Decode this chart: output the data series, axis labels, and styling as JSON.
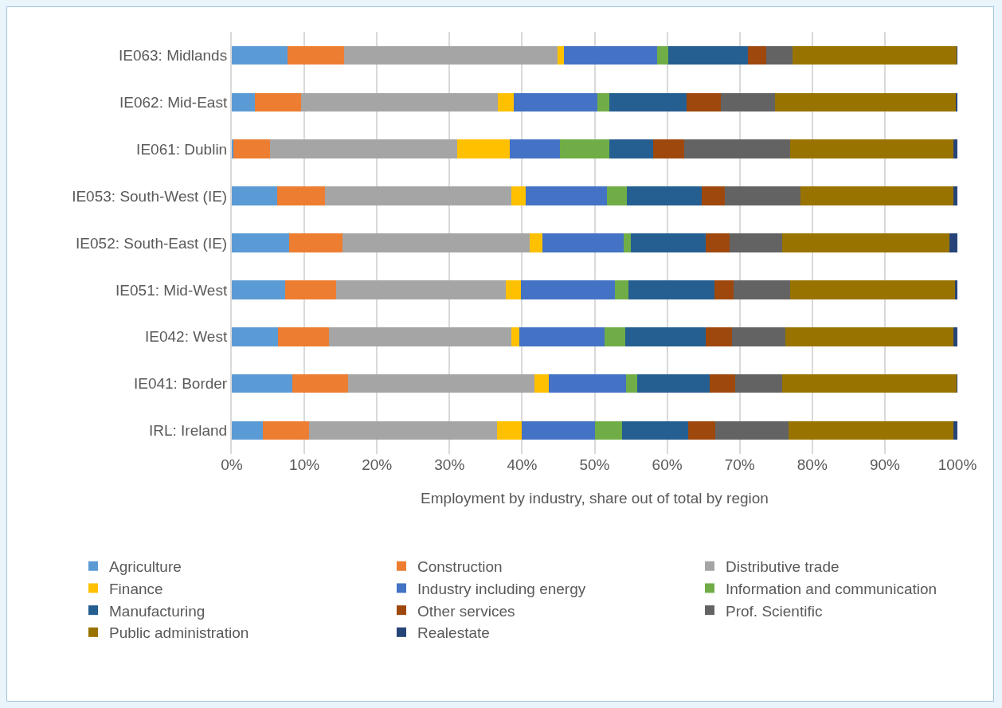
{
  "chart_data": {
    "type": "bar",
    "orientation": "horizontal",
    "stacked": true,
    "xlabel": "Employment by industry, share out of total by region",
    "categories": [
      "IE063: Midlands",
      "IE062: Mid-East",
      "IE061: Dublin",
      "IE053: South-West (IE)",
      "IE052: South-East (IE)",
      "IE051: Mid-West",
      "IE042: West",
      "IE041: Border",
      "IRL: Ireland"
    ],
    "series": [
      {
        "name": "Agriculture",
        "color": "#5b9bd5",
        "values": [
          7.7,
          3.2,
          0.2,
          6.3,
          7.9,
          7.4,
          6.4,
          8.3,
          4.3
        ]
      },
      {
        "name": "Construction",
        "color": "#ed7d31",
        "values": [
          7.8,
          6.3,
          5.1,
          6.5,
          7.4,
          7.0,
          7.0,
          7.7,
          6.3
        ]
      },
      {
        "name": "Distributive trade",
        "color": "#a5a5a5",
        "values": [
          29.4,
          27.2,
          25.8,
          25.7,
          25.8,
          23.4,
          25.1,
          25.7,
          25.9
        ]
      },
      {
        "name": "Finance",
        "color": "#ffc000",
        "values": [
          0.9,
          2.2,
          7.2,
          2.0,
          1.7,
          2.1,
          1.1,
          2.0,
          3.5
        ]
      },
      {
        "name": "Industry including energy",
        "color": "#4472c4",
        "values": [
          12.8,
          11.5,
          6.9,
          11.2,
          11.2,
          12.9,
          11.8,
          10.6,
          10.1
        ]
      },
      {
        "name": "Information and communication",
        "color": "#70ad47",
        "values": [
          1.6,
          1.6,
          6.8,
          2.7,
          1.0,
          1.9,
          2.8,
          1.6,
          3.7
        ]
      },
      {
        "name": "Manufacturing",
        "color": "#255e91",
        "values": [
          10.9,
          10.7,
          6.1,
          10.4,
          10.3,
          11.8,
          11.1,
          10.0,
          9.1
        ]
      },
      {
        "name": "Other services",
        "color": "#9e480e",
        "values": [
          2.5,
          4.7,
          4.2,
          3.1,
          3.3,
          2.7,
          3.6,
          3.5,
          3.7
        ]
      },
      {
        "name": "Prof. Scientific",
        "color": "#636363",
        "values": [
          3.7,
          7.5,
          14.6,
          10.5,
          7.3,
          7.7,
          7.4,
          6.5,
          10.1
        ]
      },
      {
        "name": "Public administration",
        "color": "#997300",
        "values": [
          22.6,
          24.9,
          22.5,
          21.1,
          23.0,
          22.8,
          23.2,
          24.0,
          22.8
        ]
      },
      {
        "name": "Realestate",
        "color": "#264478",
        "values": [
          0.1,
          0.2,
          0.6,
          0.5,
          1.1,
          0.3,
          0.5,
          0.1,
          0.5
        ]
      }
    ],
    "xlim": [
      0,
      100
    ],
    "xticks": [
      {
        "value": 0,
        "label": "0%"
      },
      {
        "value": 10,
        "label": "10%"
      },
      {
        "value": 20,
        "label": "20%"
      },
      {
        "value": 30,
        "label": "30%"
      },
      {
        "value": 40,
        "label": "40%"
      },
      {
        "value": 50,
        "label": "50%"
      },
      {
        "value": 60,
        "label": "60%"
      },
      {
        "value": 70,
        "label": "70%"
      },
      {
        "value": 80,
        "label": "80%"
      },
      {
        "value": 90,
        "label": "90%"
      },
      {
        "value": 100,
        "label": "100%"
      }
    ],
    "grid": "x",
    "legend": "bottom"
  }
}
